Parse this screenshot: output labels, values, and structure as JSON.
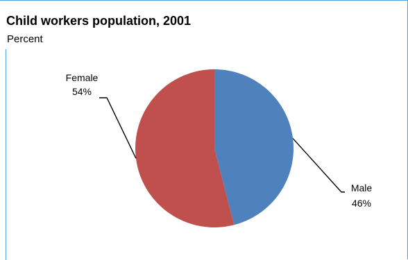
{
  "chart_data": {
    "type": "pie",
    "title": "Child workers population, 2001",
    "subtitle": "Percent",
    "legend": "none",
    "slices": [
      {
        "label": "Male",
        "value": 46,
        "value_text": "46%",
        "color": "#4f81bd"
      },
      {
        "label": "Female",
        "value": 54,
        "value_text": "54%",
        "color": "#c0504d"
      }
    ]
  }
}
